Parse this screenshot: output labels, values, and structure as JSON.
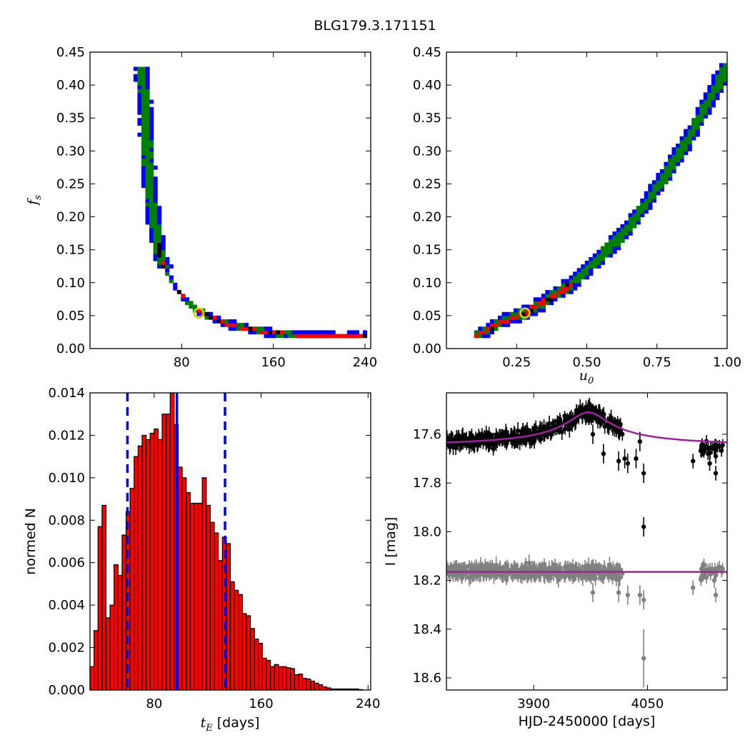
{
  "figure": {
    "title": "BLG179.3.171151"
  },
  "chart_data": [
    {
      "panel": "fs-vs-tE",
      "type": "heatmap",
      "title": "",
      "xlabel": "",
      "ylabel": "f_s",
      "xlim": [
        0,
        245
      ],
      "ylim": [
        0,
        0.45
      ],
      "xticks": [
        80,
        160,
        240
      ],
      "yticks": [
        0.0,
        0.05,
        0.1,
        0.15,
        0.2,
        0.25,
        0.3,
        0.35,
        0.4,
        0.45
      ],
      "curve": [
        [
          45,
          0.43
        ],
        [
          48,
          0.37
        ],
        [
          50,
          0.3
        ],
        [
          52,
          0.25
        ],
        [
          55,
          0.2
        ],
        [
          60,
          0.15
        ],
        [
          66,
          0.12
        ],
        [
          74,
          0.095
        ],
        [
          85,
          0.07
        ],
        [
          95,
          0.058
        ],
        [
          105,
          0.048
        ],
        [
          120,
          0.038
        ],
        [
          140,
          0.03
        ],
        [
          160,
          0.024
        ],
        [
          190,
          0.02
        ],
        [
          215,
          0.019
        ],
        [
          242,
          0.019
        ]
      ],
      "band_colors": {
        "outer": "#0000ff",
        "middle": "#008000",
        "inner": "#ff0000",
        "best": "#000000"
      },
      "best_fit": {
        "x": 95,
        "y": 0.054
      }
    },
    {
      "panel": "fs-vs-u0",
      "type": "heatmap",
      "title": "",
      "xlabel": "u_0",
      "ylabel": "",
      "xlim": [
        0,
        1.0
      ],
      "ylim": [
        0,
        0.45
      ],
      "xticks": [
        0.25,
        0.5,
        0.75,
        1.0
      ],
      "yticks": [
        0.0,
        0.05,
        0.1,
        0.15,
        0.2,
        0.25,
        0.3,
        0.35,
        0.4,
        0.45
      ],
      "curve": [
        [
          0.1,
          0.019
        ],
        [
          0.15,
          0.03
        ],
        [
          0.2,
          0.042
        ],
        [
          0.28,
          0.055
        ],
        [
          0.35,
          0.072
        ],
        [
          0.45,
          0.1
        ],
        [
          0.55,
          0.14
        ],
        [
          0.65,
          0.185
        ],
        [
          0.75,
          0.245
        ],
        [
          0.85,
          0.31
        ],
        [
          0.95,
          0.39
        ],
        [
          1.0,
          0.43
        ]
      ],
      "band_colors": {
        "outer": "#0000ff",
        "middle": "#008000",
        "inner": "#ff0000",
        "best": "#000000"
      },
      "best_fit": {
        "x": 0.28,
        "y": 0.054
      }
    },
    {
      "panel": "tE-histogram",
      "type": "bar",
      "title": "",
      "xlabel": "t_E  [days]",
      "ylabel": "normed N",
      "xlim": [
        32,
        242
      ],
      "ylim": [
        0,
        0.014
      ],
      "xticks": [
        80,
        160,
        240
      ],
      "yticks": [
        0.0,
        0.002,
        0.004,
        0.006,
        0.008,
        0.01,
        0.012,
        0.014
      ],
      "bin_start": 32,
      "bin_width": 3,
      "values": [
        0.0011,
        0.0028,
        0.0077,
        0.0087,
        0.0034,
        0.004,
        0.0059,
        0.0054,
        0.0073,
        0.0084,
        0.0095,
        0.011,
        0.0115,
        0.012,
        0.0118,
        0.0121,
        0.0123,
        0.0118,
        0.013,
        0.013,
        0.014,
        0.0125,
        0.0105,
        0.01,
        0.0093,
        0.0088,
        0.0088,
        0.0088,
        0.01,
        0.0087,
        0.0079,
        0.0074,
        0.0061,
        0.0072,
        0.0069,
        0.0051,
        0.0047,
        0.0045,
        0.0036,
        0.0035,
        0.0029,
        0.0024,
        0.0022,
        0.0015,
        0.0014,
        0.0011,
        0.0012,
        0.0011,
        0.0011,
        0.00105,
        0.00101,
        0.00072,
        0.00075,
        0.00055,
        0.00052,
        0.00042,
        0.00032,
        0.00025,
        0.00015,
        0.0001,
        5e-05,
        5e-05,
        5e-05,
        5e-05,
        5e-05,
        5e-05,
        5e-05,
        2e-05
      ],
      "bar_color": "#ff0000",
      "dashed_lines": [
        60,
        133
      ],
      "solid_line": 97,
      "line_color": "#0000ff"
    },
    {
      "panel": "light-curve",
      "type": "scatter",
      "title": "",
      "xlabel": "HJD-2450000 [days]",
      "ylabel": "I [mag]",
      "xlim": [
        3785,
        4155
      ],
      "ylim": [
        18.65,
        17.43
      ],
      "y_inverted": true,
      "xticks": [
        3900,
        4050
      ],
      "yticks": [
        17.6,
        17.8,
        18.0,
        18.2,
        18.4,
        18.6
      ],
      "series": [
        {
          "color": "#000000",
          "model_color": "#a020a0",
          "baseline": 17.655,
          "peak_mag": 17.51,
          "t0": 3972,
          "tE": 28
        },
        {
          "color": "#808080",
          "model_color": "#a020a0",
          "baseline": 18.165
        }
      ]
    }
  ]
}
